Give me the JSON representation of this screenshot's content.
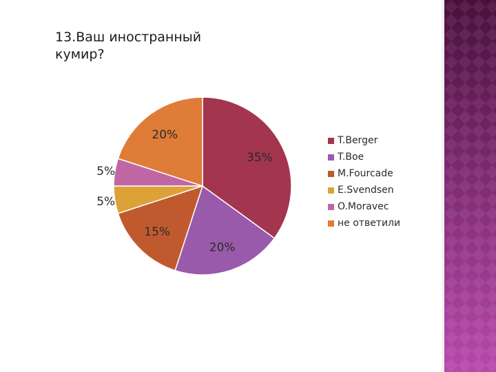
{
  "slide": {
    "title": "13.Ваш иностранный кумир?"
  },
  "chart_data": {
    "type": "pie",
    "title": "",
    "categories": [
      "T.Berger",
      "T.Boe",
      "M.Fourcade",
      "E.Svendsen",
      "O.Moravec",
      "не ответили"
    ],
    "values": [
      35,
      20,
      15,
      5,
      5,
      20
    ],
    "data_labels": [
      "35%",
      "20%",
      "15%",
      "5%",
      "5%",
      "20%"
    ],
    "colors": [
      "#a3354f",
      "#9a5aab",
      "#c05a2e",
      "#dca238",
      "#c067a3",
      "#df7c38"
    ],
    "start_angle": "12 o'clock",
    "direction": "clockwise",
    "legend_position": "right"
  },
  "side_panel": {
    "colors": [
      "#4a0f3d",
      "#b748ab"
    ]
  }
}
